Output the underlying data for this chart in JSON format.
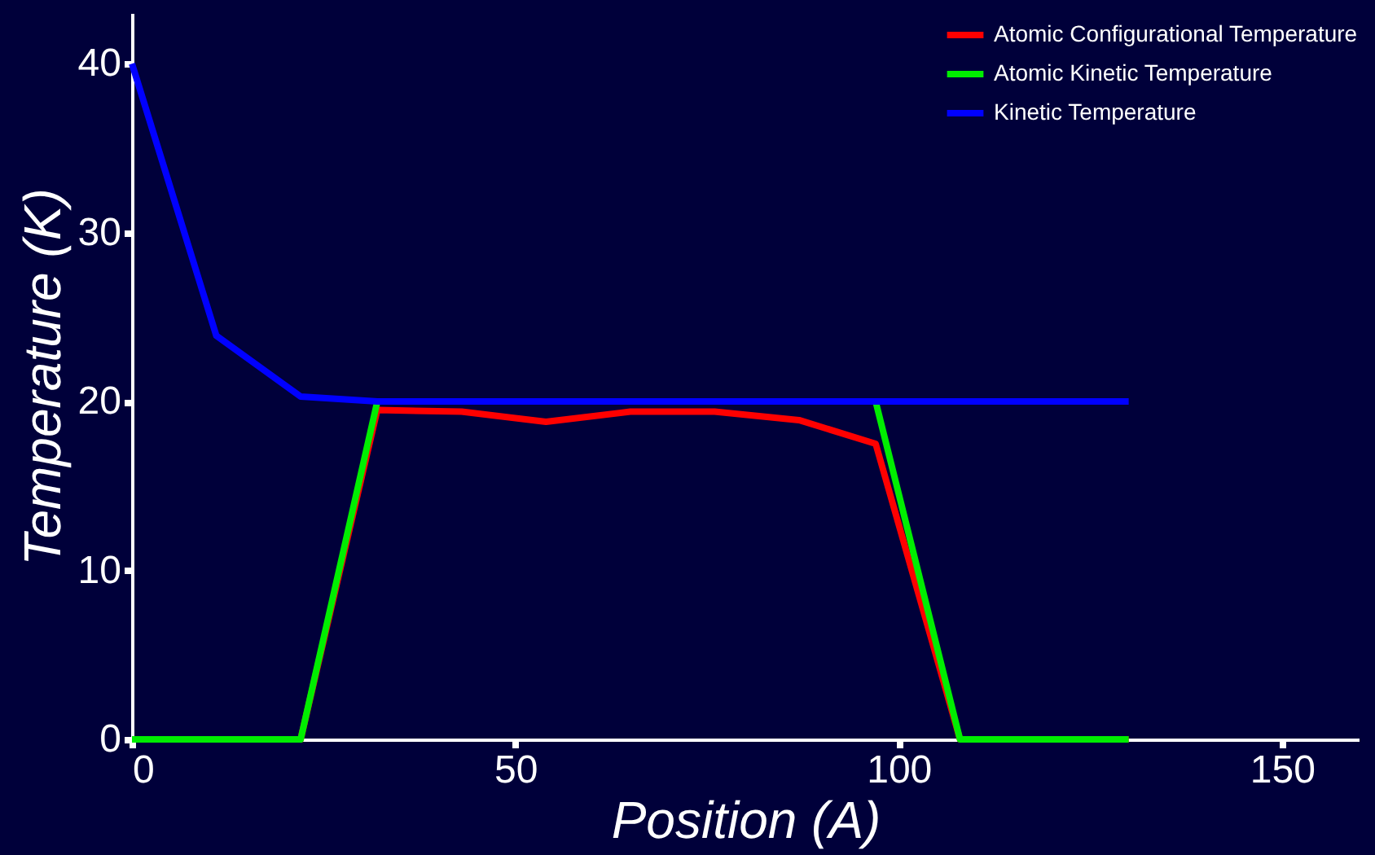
{
  "chart_data": {
    "type": "line",
    "xlabel": "Position (A)",
    "ylabel": "Temperature (K)",
    "x": [
      0,
      11,
      22,
      32,
      43,
      54,
      65,
      76,
      87,
      97,
      108,
      119,
      130
    ],
    "series": [
      {
        "name": "Atomic Configurational Temperature",
        "color": "#ff0000",
        "values": [
          0,
          0,
          0,
          19.5,
          19.4,
          18.8,
          19.4,
          19.4,
          18.9,
          17.5,
          0,
          0,
          0
        ]
      },
      {
        "name": "Atomic Kinetic Temperature",
        "color": "#00ee00",
        "values": [
          0,
          0,
          0,
          20,
          null,
          null,
          null,
          null,
          null,
          20,
          0,
          0,
          0
        ]
      },
      {
        "name": "Kinetic Temperature",
        "color": "#0000ff",
        "values": [
          40,
          23.9,
          20.3,
          20,
          20,
          20,
          20,
          20,
          20,
          20,
          20,
          20,
          20
        ]
      }
    ],
    "xlim": [
      0,
      160
    ],
    "ylim": [
      0,
      43
    ],
    "xticks": [
      0,
      50,
      100,
      150
    ],
    "yticks": [
      0,
      10,
      20,
      30,
      40
    ],
    "grid": false,
    "legend": "top right",
    "line_style": "solid",
    "marker": "none"
  }
}
